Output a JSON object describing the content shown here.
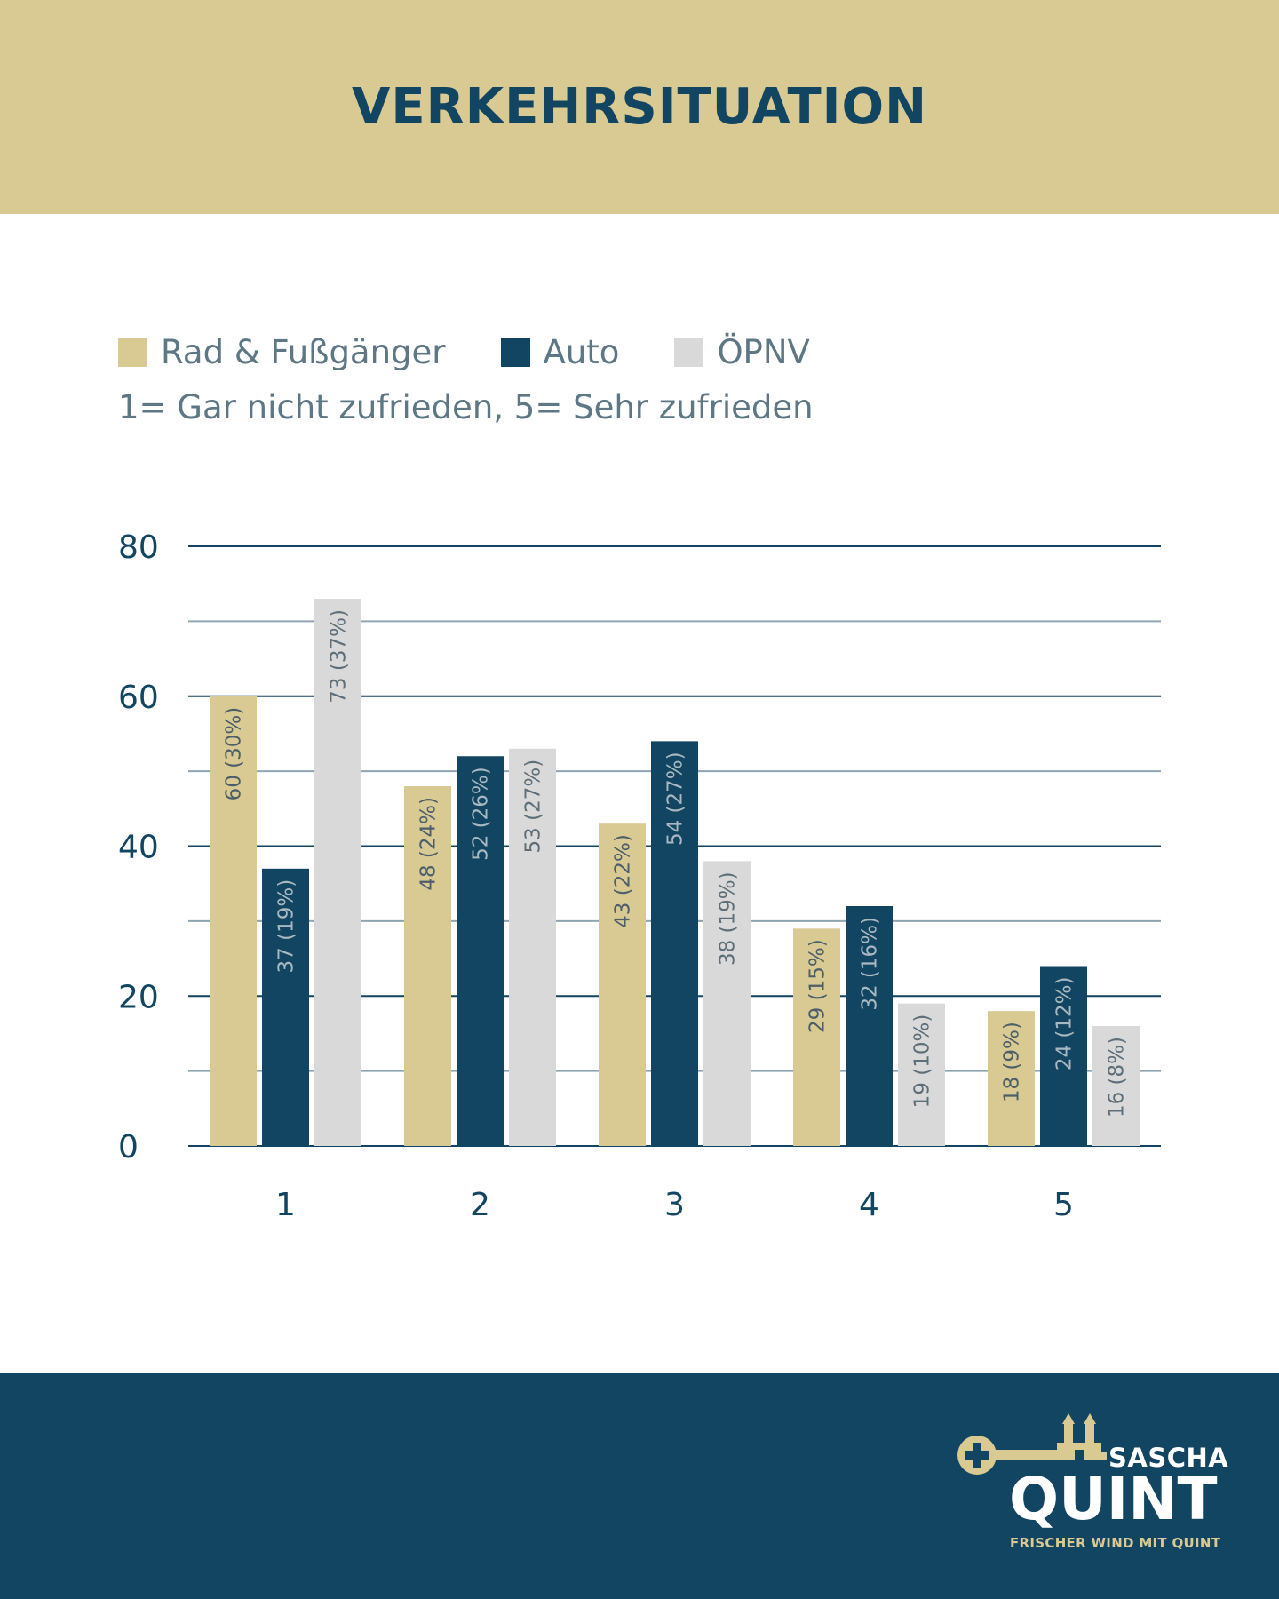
{
  "header": {
    "title": "VERKEHRSITUATION"
  },
  "legend": {
    "items": [
      {
        "label": "Rad & Fußgänger",
        "color": "#d9c993"
      },
      {
        "label": "Auto",
        "color": "#114561"
      },
      {
        "label": "ÖPNV",
        "color": "#d9d9d9"
      }
    ]
  },
  "scale_note": "1= Gar nicht zufrieden, 5= Sehr zufrieden",
  "chart_data": {
    "type": "bar",
    "title": "VERKEHRSITUATION",
    "subtitle": "1= Gar nicht zufrieden, 5= Sehr zufrieden",
    "categories": [
      "1",
      "2",
      "3",
      "4",
      "5"
    ],
    "series": [
      {
        "name": "Rad & Fußgänger",
        "color": "#d9c993",
        "values": [
          60,
          48,
          43,
          29,
          18
        ],
        "labels": [
          "60 (30%)",
          "48 (24%)",
          "43 (22%)",
          "29 (15%)",
          "18 (9%)"
        ]
      },
      {
        "name": "Auto",
        "color": "#114561",
        "values": [
          37,
          52,
          54,
          32,
          24
        ],
        "labels": [
          "37 (19%)",
          "52 (26%)",
          "54 (27%)",
          "32 (16%)",
          "24 (12%)"
        ]
      },
      {
        "name": "ÖPNV",
        "color": "#d9d9d9",
        "values": [
          73,
          53,
          38,
          19,
          16
        ],
        "labels": [
          "73 (37%)",
          "53 (27%)",
          "38 (19%)",
          "19 (10%)",
          "16 (8%)"
        ]
      }
    ],
    "yticks": [
      0,
      20,
      40,
      60,
      80
    ],
    "ylim": [
      0,
      80
    ],
    "grid": true,
    "legend_position": "top-left"
  },
  "footer": {
    "brand_first": "SASCHA",
    "brand_last": "QUINT",
    "slogan": "FRISCHER WIND MIT QUINT"
  }
}
